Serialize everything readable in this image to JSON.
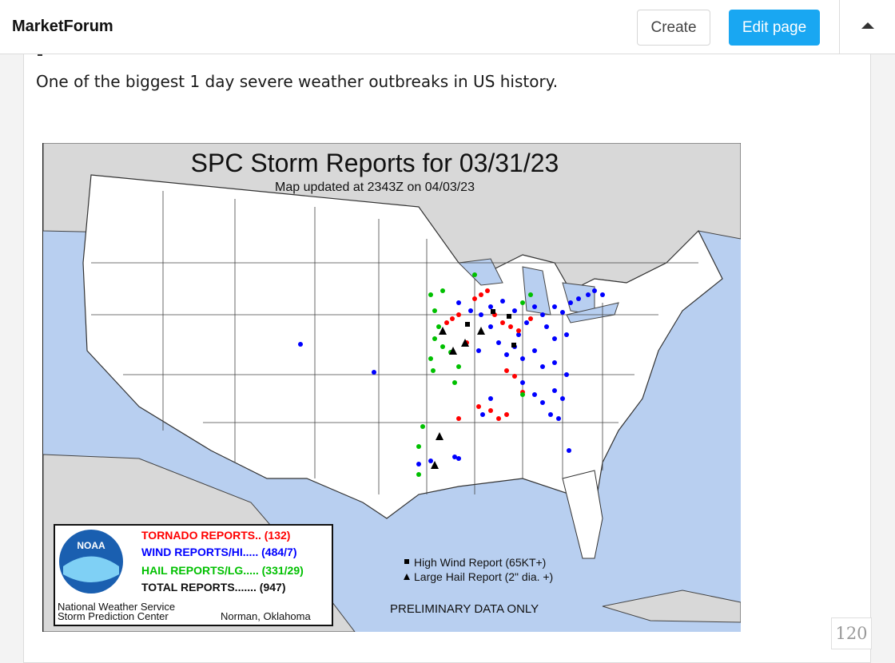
{
  "header": {
    "brand": "MarketForum",
    "create_label": "Create",
    "edit_label": "Edit page",
    "accent_color": "#19a7f2"
  },
  "post": {
    "text": "One of the biggest 1 day severe weather outbreaks in US history."
  },
  "map": {
    "title": "SPC Storm Reports for 03/31/23",
    "subtitle": "Map updated at 2343Z on 04/03/23",
    "legend": {
      "tornado": "TORNADO REPORTS.. (132)",
      "wind": "WIND REPORTS/HI..... (484/7)",
      "hail": "HAIL REPORTS/LG..... (331/29)",
      "total": "TOTAL REPORTS....... (947)",
      "agency_line1": "National Weather Service",
      "agency_line2": "Storm Prediction Center",
      "location": "Norman, Oklahoma",
      "logo_text": "NOAA"
    },
    "key": {
      "high_wind": "High Wind Report (65KT+)",
      "large_hail": "Large Hail Report (2\" dia. +)"
    },
    "preliminary": "PRELIMINARY DATA ONLY",
    "colors": {
      "tornado": "#ff0000",
      "wind": "#0000ff",
      "hail": "#00c000",
      "water": "#b8cff0",
      "land": "#ffffff",
      "foreign_land": "#d8d8d8"
    }
  },
  "pagination": {
    "count": "120"
  }
}
